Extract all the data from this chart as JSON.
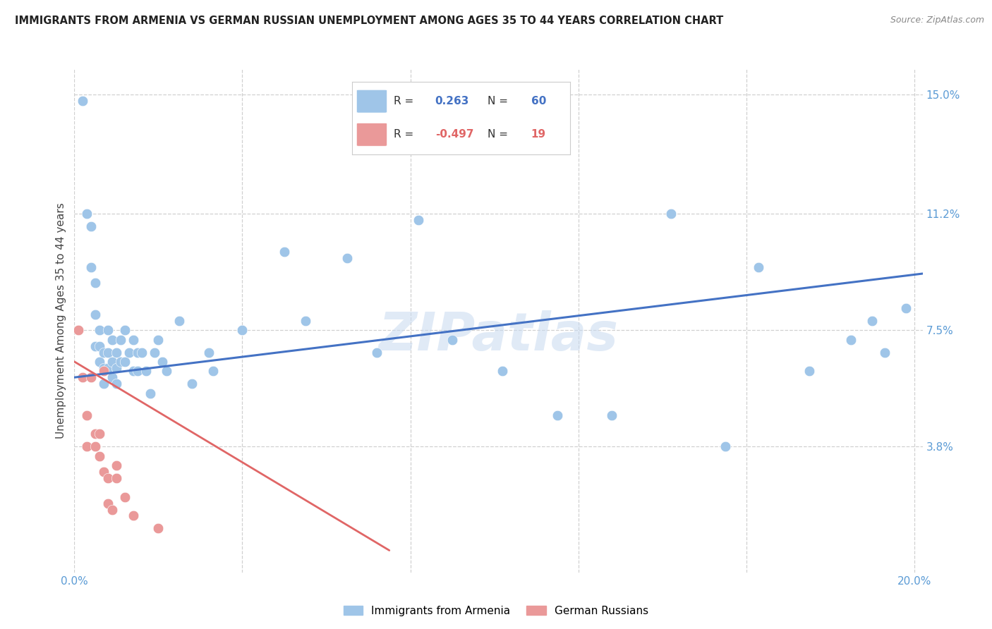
{
  "title": "IMMIGRANTS FROM ARMENIA VS GERMAN RUSSIAN UNEMPLOYMENT AMONG AGES 35 TO 44 YEARS CORRELATION CHART",
  "source": "Source: ZipAtlas.com",
  "ylabel": "Unemployment Among Ages 35 to 44 years",
  "xlim": [
    0.0,
    0.202
  ],
  "ylim": [
    -0.002,
    0.158
  ],
  "yticks": [
    0.038,
    0.075,
    0.112,
    0.15
  ],
  "ytick_labels": [
    "3.8%",
    "7.5%",
    "11.2%",
    "15.0%"
  ],
  "xticks": [
    0.0,
    0.04,
    0.08,
    0.12,
    0.16,
    0.2
  ],
  "xtick_labels": [
    "0.0%",
    "",
    "",
    "",
    "",
    "20.0%"
  ],
  "blue_color": "#9fc5e8",
  "pink_color": "#ea9999",
  "blue_line_color": "#4472c4",
  "pink_line_color": "#e06666",
  "watermark": "ZIPatlas",
  "armenia_x": [
    0.002,
    0.003,
    0.004,
    0.004,
    0.005,
    0.005,
    0.005,
    0.006,
    0.006,
    0.006,
    0.007,
    0.007,
    0.007,
    0.008,
    0.008,
    0.008,
    0.009,
    0.009,
    0.009,
    0.01,
    0.01,
    0.01,
    0.011,
    0.011,
    0.012,
    0.012,
    0.013,
    0.014,
    0.014,
    0.015,
    0.015,
    0.016,
    0.017,
    0.018,
    0.019,
    0.02,
    0.021,
    0.022,
    0.025,
    0.028,
    0.032,
    0.033,
    0.04,
    0.05,
    0.055,
    0.065,
    0.072,
    0.082,
    0.09,
    0.102,
    0.115,
    0.128,
    0.142,
    0.155,
    0.163,
    0.175,
    0.185,
    0.19,
    0.193,
    0.198
  ],
  "armenia_y": [
    0.148,
    0.112,
    0.108,
    0.095,
    0.09,
    0.08,
    0.07,
    0.075,
    0.07,
    0.065,
    0.068,
    0.063,
    0.058,
    0.075,
    0.068,
    0.063,
    0.072,
    0.065,
    0.06,
    0.068,
    0.063,
    0.058,
    0.072,
    0.065,
    0.075,
    0.065,
    0.068,
    0.072,
    0.062,
    0.068,
    0.062,
    0.068,
    0.062,
    0.055,
    0.068,
    0.072,
    0.065,
    0.062,
    0.078,
    0.058,
    0.068,
    0.062,
    0.075,
    0.1,
    0.078,
    0.098,
    0.068,
    0.11,
    0.072,
    0.062,
    0.048,
    0.048,
    0.112,
    0.038,
    0.095,
    0.062,
    0.072,
    0.078,
    0.068,
    0.082
  ],
  "german_russian_x": [
    0.001,
    0.002,
    0.003,
    0.003,
    0.004,
    0.005,
    0.005,
    0.006,
    0.006,
    0.007,
    0.007,
    0.008,
    0.008,
    0.009,
    0.01,
    0.01,
    0.012,
    0.014,
    0.02
  ],
  "german_russian_y": [
    0.075,
    0.06,
    0.048,
    0.038,
    0.06,
    0.042,
    0.038,
    0.042,
    0.035,
    0.062,
    0.03,
    0.028,
    0.02,
    0.018,
    0.032,
    0.028,
    0.022,
    0.016,
    0.012
  ],
  "armenia_trend_x": [
    0.0,
    0.202
  ],
  "armenia_trend_y": [
    0.06,
    0.093
  ],
  "german_russian_trend_x": [
    0.0,
    0.075
  ],
  "german_russian_trend_y": [
    0.065,
    0.005
  ],
  "background_color": "#ffffff",
  "grid_color": "#d0d0d0",
  "title_color": "#222222",
  "axis_tick_color": "#5b9bd5"
}
